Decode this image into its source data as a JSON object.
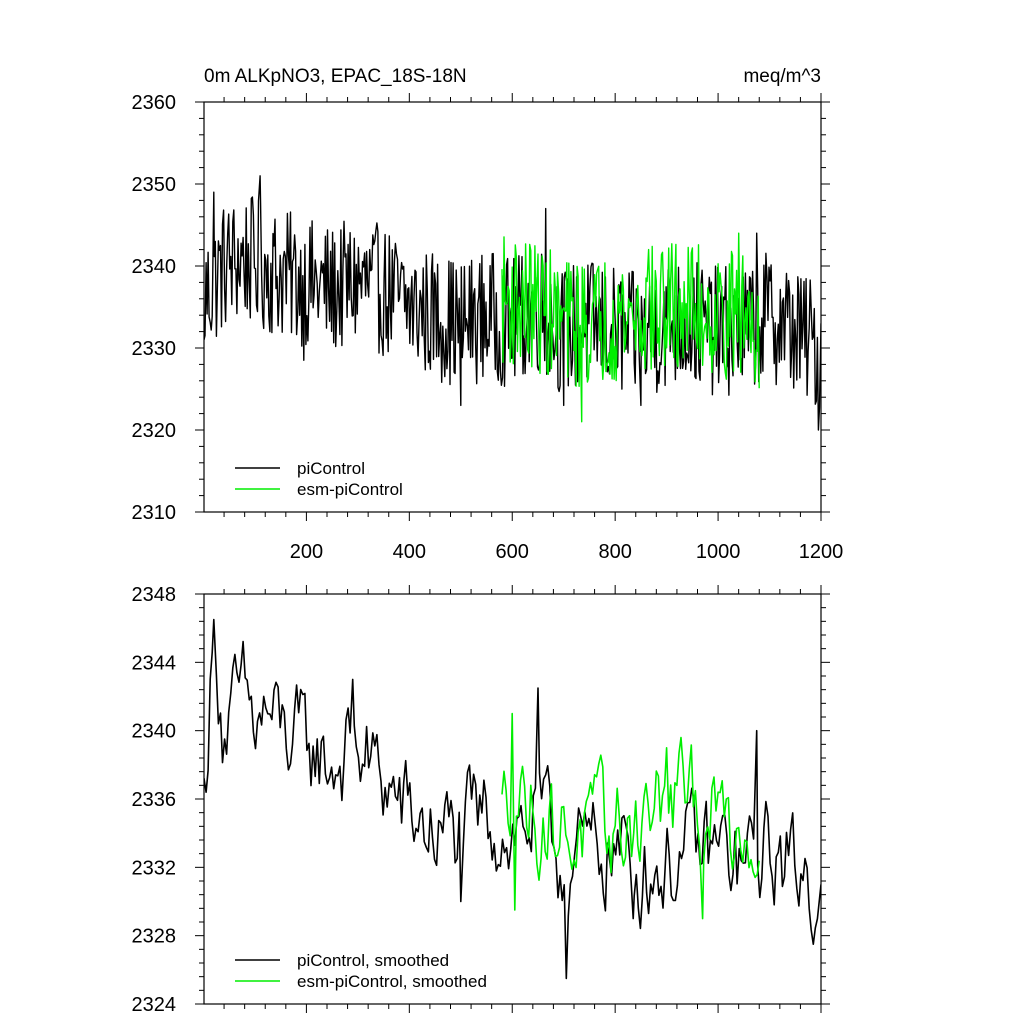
{
  "chart_data": [
    {
      "type": "line",
      "title_left": "0m ALKpNO3, EPAC_18S-18N",
      "title_right": "meq/m^3",
      "xlabel": "",
      "ylabel": "",
      "xlim": [
        1,
        1200
      ],
      "ylim": [
        2310,
        2360
      ],
      "x_ticks": [
        200,
        400,
        600,
        800,
        1000,
        1200
      ],
      "x_tick_labels": [
        "200",
        "400",
        "600",
        "800",
        "1000",
        "1200"
      ],
      "y_ticks": [
        2310,
        2320,
        2330,
        2340,
        2350,
        2360
      ],
      "y_tick_labels": [
        "2310",
        "2320",
        "2330",
        "2340",
        "2350",
        "2360"
      ],
      "legend_position": "bottom-left",
      "series": [
        {
          "name": "piControl",
          "color": "#000000",
          "x_range": [
            1,
            1200
          ],
          "x": [
            1,
            40,
            80,
            110,
            150,
            200,
            250,
            300,
            350,
            400,
            450,
            500,
            550,
            600,
            650,
            700,
            750,
            800,
            850,
            900,
            950,
            1000,
            1050,
            1100,
            1150,
            1200
          ],
          "values": [
            2336,
            2340,
            2341,
            2340,
            2339,
            2338,
            2337,
            2338,
            2337,
            2335,
            2334,
            2333,
            2334,
            2333,
            2335,
            2332,
            2333,
            2332,
            2331,
            2333,
            2333,
            2332,
            2332,
            2334,
            2332,
            2330
          ],
          "noise_amplitude": 8,
          "notable_points": [
            [
              1,
              2331
            ],
            [
              20,
              2349
            ],
            [
              110,
              2351
            ],
            [
              195,
              2328.5
            ],
            [
              500,
              2323
            ],
            [
              665,
              2347
            ],
            [
              700,
              2323
            ],
            [
              850,
              2323
            ],
            [
              1075,
              2344
            ],
            [
              1195,
              2320
            ],
            [
              1200,
              2333
            ]
          ]
        },
        {
          "name": "esm-piControl",
          "color": "#00ee00",
          "x_range": [
            580,
            1080
          ],
          "x": [
            580,
            650,
            700,
            750,
            800,
            850,
            900,
            950,
            1000,
            1050,
            1080
          ],
          "values": [
            2336,
            2335,
            2333,
            2333,
            2334,
            2334,
            2335,
            2335,
            2334,
            2334,
            2333
          ],
          "noise_amplitude": 8,
          "notable_points": [
            [
              735,
              2321
            ],
            [
              865,
              2342
            ],
            [
              1040,
              2344
            ]
          ]
        }
      ]
    },
    {
      "type": "line",
      "title_left": "",
      "title_right": "",
      "xlabel": "",
      "ylabel": "",
      "xlim": [
        1,
        1200
      ],
      "ylim": [
        2324,
        2348
      ],
      "x_ticks": [
        200,
        400,
        600,
        800,
        1000,
        1200
      ],
      "x_tick_labels": [],
      "y_ticks": [
        2324,
        2328,
        2332,
        2336,
        2340,
        2344,
        2348
      ],
      "y_tick_labels": [
        "2324",
        "2328",
        "2332",
        "2336",
        "2340",
        "2344",
        "2348"
      ],
      "legend_position": "bottom-left",
      "series": [
        {
          "name": "piControl, smoothed",
          "color": "#000000",
          "x_range": [
            1,
            1200
          ],
          "x": [
            1,
            20,
            40,
            60,
            80,
            100,
            120,
            150,
            200,
            250,
            300,
            350,
            400,
            450,
            500,
            550,
            600,
            650,
            700,
            750,
            800,
            850,
            900,
            950,
            1000,
            1050,
            1100,
            1150,
            1200
          ],
          "values": [
            2336,
            2346,
            2340,
            2341,
            2342,
            2340,
            2341,
            2340,
            2339,
            2338,
            2339,
            2337,
            2335,
            2334,
            2334,
            2335,
            2334,
            2335,
            2332,
            2333,
            2333,
            2332,
            2332,
            2333,
            2333,
            2332,
            2333,
            2332,
            2331
          ],
          "noise_amplitude": 3,
          "notable_points": [
            [
              20,
              2346.5
            ],
            [
              290,
              2343
            ],
            [
              500,
              2330
            ],
            [
              650,
              2342.5
            ],
            [
              705,
              2325.5
            ],
            [
              835,
              2329
            ],
            [
              1075,
              2340
            ],
            [
              1185,
              2327.5
            ],
            [
              1200,
              2331
            ]
          ]
        },
        {
          "name": "esm-piControl, smoothed",
          "color": "#00ee00",
          "x_range": [
            580,
            1080
          ],
          "x": [
            580,
            600,
            650,
            700,
            750,
            800,
            850,
            900,
            950,
            1000,
            1050,
            1080
          ],
          "values": [
            2335,
            2337,
            2335,
            2334,
            2334,
            2334,
            2335,
            2336,
            2336,
            2335,
            2334,
            2334
          ],
          "noise_amplitude": 3,
          "notable_points": [
            [
              600,
              2341
            ],
            [
              605,
              2329.5
            ],
            [
              900,
              2339
            ],
            [
              970,
              2329
            ]
          ]
        }
      ]
    }
  ]
}
